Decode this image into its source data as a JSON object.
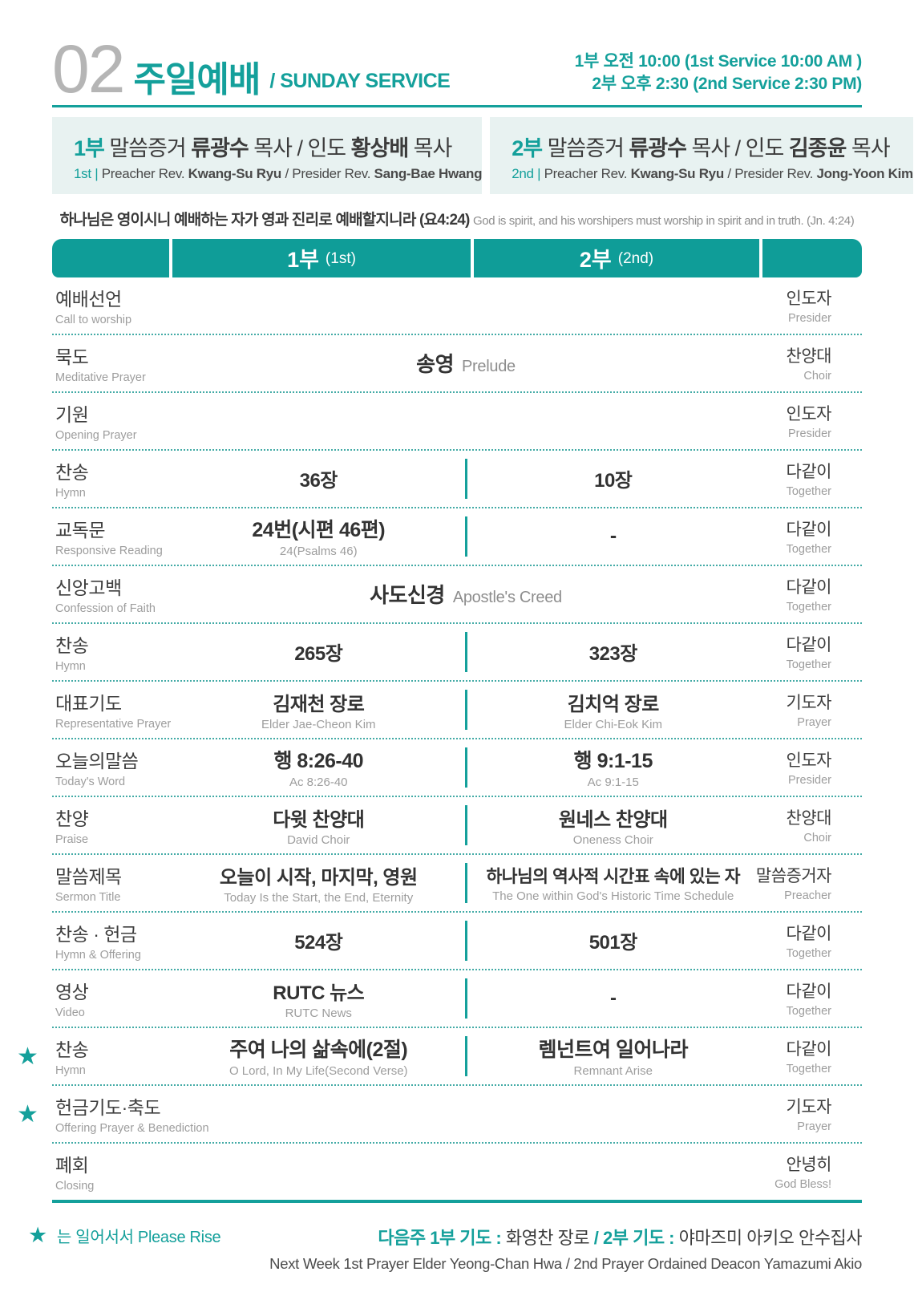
{
  "colors": {
    "teal": "#14a09b",
    "header_bar": "#0f9d98",
    "dark_text": "#3c3c3c",
    "gray_text": "#9d9d9d",
    "box_bg": "#e8f2f1",
    "number_gray": "#b5b5b5"
  },
  "page": {
    "number": "02",
    "title_ko": "주일예배",
    "title_en": "/ SUNDAY SERVICE",
    "times": [
      "1부 오전 10:00 (1st Service  10:00 AM )",
      "2부 오후 2:30 (2nd Service  2:30 PM)"
    ]
  },
  "service_boxes": [
    {
      "line1": [
        {
          "t": "1부",
          "c": "teal b"
        },
        {
          "t": "  말씀증거 ",
          "c": "dark"
        },
        {
          "t": "류광수",
          "c": "dark b"
        },
        {
          "t": " 목사  /  인도 ",
          "c": "dark"
        },
        {
          "t": "황상배",
          "c": "dark b"
        },
        {
          "t": " 목사",
          "c": "dark"
        }
      ],
      "line2": [
        {
          "t": "1st",
          "c": "teal"
        },
        {
          "t": "  |  ",
          "c": "teal"
        },
        {
          "t": "Preacher  Rev. ",
          "c": "g2"
        },
        {
          "t": "Kwang-Su Ryu",
          "c": "g2 b"
        },
        {
          "t": " / Presider Rev. ",
          "c": "g2"
        },
        {
          "t": "Sang-Bae Hwang",
          "c": "g2 b"
        }
      ]
    },
    {
      "line1": [
        {
          "t": "2부",
          "c": "teal b"
        },
        {
          "t": "  말씀증거 ",
          "c": "dark"
        },
        {
          "t": "류광수",
          "c": "dark b"
        },
        {
          "t": " 목사  /  인도  ",
          "c": "dark"
        },
        {
          "t": "김종윤",
          "c": "dark b"
        },
        {
          "t": " 목사",
          "c": "dark"
        }
      ],
      "line2": [
        {
          "t": "2nd",
          "c": "teal"
        },
        {
          "t": "  |  ",
          "c": "teal"
        },
        {
          "t": "Preacher  Rev. ",
          "c": "g2"
        },
        {
          "t": "Kwang-Su Ryu",
          "c": "g2 b"
        },
        {
          "t": " / Presider Rev. ",
          "c": "g2"
        },
        {
          "t": "Jong-Yoon Kim",
          "c": "g2 b"
        }
      ]
    }
  ],
  "verse": {
    "ko": "하나님은 영이시니 예배하는 자가 영과 진리로 예배할지니라 (요4:24)",
    "en": "God is spirit, and his worshipers must  worship in spirit and in truth. (Jn. 4:24)"
  },
  "table": {
    "header": {
      "col1_ko": "1부",
      "col1_en": "(1st)",
      "col2_ko": "2부",
      "col2_en": "(2nd)"
    },
    "rows": [
      {
        "label_ko": "예배선언",
        "label_en": "Call to worship",
        "type": "simple",
        "right_ko": "인도자",
        "right_en": "Presider"
      },
      {
        "label_ko": "묵도",
        "label_en": "Meditative Prayer",
        "type": "span",
        "center_ko": "송영",
        "center_en": "Prelude",
        "right_ko": "찬양대",
        "right_en": "Choir"
      },
      {
        "label_ko": "기원",
        "label_en": "Opening Prayer",
        "type": "simple",
        "right_ko": "인도자",
        "right_en": "Presider"
      },
      {
        "label_ko": "찬송",
        "label_en": "Hymn",
        "type": "two",
        "col1_ko": "36장",
        "col2_ko": "10장",
        "right_ko": "다같이",
        "right_en": "Together"
      },
      {
        "label_ko": "교독문",
        "label_en": "Responsive Reading",
        "type": "two",
        "strong": true,
        "col1_ko": "24번(시편 46편)",
        "col1_en": "24(Psalms 46)",
        "col2_ko": "-",
        "right_ko": "다같이",
        "right_en": "Together"
      },
      {
        "label_ko": "신앙고백",
        "label_en": "Confession of Faith",
        "type": "span",
        "center_ko": "사도신경",
        "center_en": "Apostle's Creed",
        "right_ko": "다같이",
        "right_en": "Together"
      },
      {
        "label_ko": "찬송",
        "label_en": "Hymn",
        "type": "two",
        "col1_ko": "265장",
        "col2_ko": "323장",
        "right_ko": "다같이",
        "right_en": "Together"
      },
      {
        "label_ko": "대표기도",
        "label_en": "Representative Prayer",
        "type": "two",
        "col1_ko": "김재천 장로",
        "col1_en": "Elder Jae-Cheon Kim",
        "col2_ko": "김치억 장로",
        "col2_en": "Elder Chi-Eok Kim",
        "right_ko": "기도자",
        "right_en": "Prayer"
      },
      {
        "label_ko": "오늘의말씀",
        "label_en": "Today's Word",
        "type": "two",
        "strong": true,
        "col1_ko": "행 8:26-40",
        "col1_en": "Ac 8:26-40",
        "col2_ko": "행 9:1-15",
        "col2_en": "Ac 9:1-15",
        "right_ko": "인도자",
        "right_en": "Presider"
      },
      {
        "label_ko": "찬양",
        "label_en": "Praise",
        "type": "two",
        "col1_ko": "다윗 찬양대",
        "col1_en": "David Choir",
        "col2_ko": "원네스 찬양대",
        "col2_en": "Oneness Choir",
        "right_ko": "찬양대",
        "right_en": "Choir"
      },
      {
        "label_ko": "말씀제목",
        "label_en": "Sermon Title",
        "type": "two",
        "strong": true,
        "col1_ko": "오늘이 시작, 마지막, 영원",
        "col1_en": "Today Is the Start, the End, Eternity",
        "col2_ko": "하나님의 역사적 시간표 속에 있는 자",
        "col2_en": "The One within God's Historic Time Schedule",
        "right_ko": "말씀증거자",
        "right_en": "Preacher"
      },
      {
        "label_ko": "찬송 · 헌금",
        "label_en": "Hymn & Offering",
        "type": "two",
        "col1_ko": "524장",
        "col2_ko": "501장",
        "right_ko": "다같이",
        "right_en": "Together"
      },
      {
        "label_ko": "영상",
        "label_en": "Video",
        "type": "two",
        "col1_ko": "RUTC 뉴스",
        "col1_en": "RUTC News",
        "col2_ko": "-",
        "right_ko": "다같이",
        "right_en": "Together"
      },
      {
        "label_ko": "찬송",
        "label_en": "Hymn",
        "type": "two",
        "strong": true,
        "star": true,
        "col1_ko": "주여 나의 삶속에(2절)",
        "col1_en": "O Lord, In My Life(Second Verse)",
        "col2_ko": "렘넌트여 일어나라",
        "col2_en": "Remnant Arise",
        "right_ko": "다같이",
        "right_en": "Together"
      },
      {
        "label_ko": "헌금기도·축도",
        "label_en": "Offering Prayer & Benediction",
        "type": "simple",
        "star": true,
        "right_ko": "기도자",
        "right_en": "Prayer"
      },
      {
        "label_ko": "폐회",
        "label_en": "Closing",
        "type": "simple",
        "right_ko": "안녕히",
        "right_en": "God Bless!"
      }
    ]
  },
  "footer": {
    "legend_star": "★",
    "legend": "는 일어서서  Please Rise",
    "next_week_parts": [
      {
        "t": "다음주  ",
        "c": "teal b"
      },
      {
        "t": "1부 기도 : ",
        "c": "teal b"
      },
      {
        "t": "화영찬 장로",
        "c": "dark"
      },
      {
        "t": " / ",
        "c": "teal b"
      },
      {
        "t": "2부 기도 : ",
        "c": "teal b"
      },
      {
        "t": "야마즈미 아키오 안수집사",
        "c": "dark"
      }
    ],
    "next_week_en": "Next Week 1st Prayer Elder Yeong-Chan Hwa /  2nd Prayer Ordained Deacon Yamazumi Akio"
  }
}
